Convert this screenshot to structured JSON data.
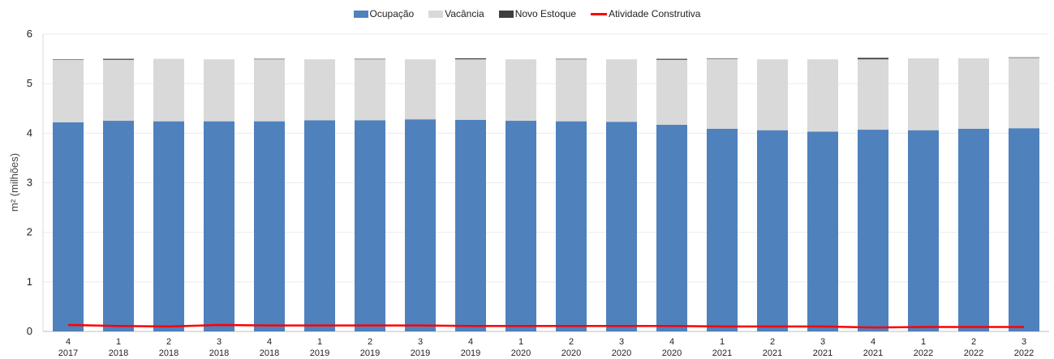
{
  "chart_data": {
    "type": "bar",
    "stacked": true,
    "ylabel": "m² (milhões)",
    "ylim": [
      0,
      6
    ],
    "yticks": [
      "0",
      "1",
      "2",
      "3",
      "4",
      "5",
      "6"
    ],
    "grid": true,
    "legend_position": "top-center",
    "categories": [
      [
        "4",
        "2017"
      ],
      [
        "1",
        "2018"
      ],
      [
        "2",
        "2018"
      ],
      [
        "3",
        "2018"
      ],
      [
        "4",
        "2018"
      ],
      [
        "1",
        "2019"
      ],
      [
        "2",
        "2019"
      ],
      [
        "3",
        "2019"
      ],
      [
        "4",
        "2019"
      ],
      [
        "1",
        "2020"
      ],
      [
        "2",
        "2020"
      ],
      [
        "3",
        "2020"
      ],
      [
        "4",
        "2020"
      ],
      [
        "1",
        "2021"
      ],
      [
        "2",
        "2021"
      ],
      [
        "3",
        "2021"
      ],
      [
        "4",
        "2021"
      ],
      [
        "1",
        "2022"
      ],
      [
        "2",
        "2022"
      ],
      [
        "3",
        "2022"
      ]
    ],
    "series": [
      {
        "name": "Ocupação",
        "type": "bar",
        "color": "#4F81BD",
        "values": [
          4.22,
          4.25,
          4.24,
          4.24,
          4.24,
          4.26,
          4.26,
          4.28,
          4.27,
          4.25,
          4.24,
          4.23,
          4.17,
          4.09,
          4.06,
          4.03,
          4.07,
          4.06,
          4.09,
          4.1
        ]
      },
      {
        "name": "Vacância",
        "type": "bar",
        "color": "#D9D9D9",
        "values": [
          1.26,
          1.23,
          1.26,
          1.25,
          1.25,
          1.23,
          1.23,
          1.21,
          1.22,
          1.24,
          1.25,
          1.26,
          1.31,
          1.41,
          1.43,
          1.46,
          1.42,
          1.45,
          1.42,
          1.42
        ]
      },
      {
        "name": "Novo Estoque",
        "type": "bar",
        "color": "#3F3F3F",
        "values": [
          0.01,
          0.02,
          0.0,
          0.0,
          0.01,
          0.0,
          0.01,
          0.0,
          0.02,
          0.0,
          0.01,
          0.0,
          0.02,
          0.01,
          0.0,
          0.0,
          0.03,
          0.0,
          0.0,
          0.01
        ]
      },
      {
        "name": "Atividade Construtiva",
        "type": "line",
        "color": "#FF0000",
        "values": [
          0.13,
          0.11,
          0.1,
          0.13,
          0.12,
          0.12,
          0.12,
          0.12,
          0.11,
          0.11,
          0.11,
          0.11,
          0.11,
          0.1,
          0.1,
          0.1,
          0.08,
          0.09,
          0.09,
          0.09
        ]
      }
    ]
  }
}
